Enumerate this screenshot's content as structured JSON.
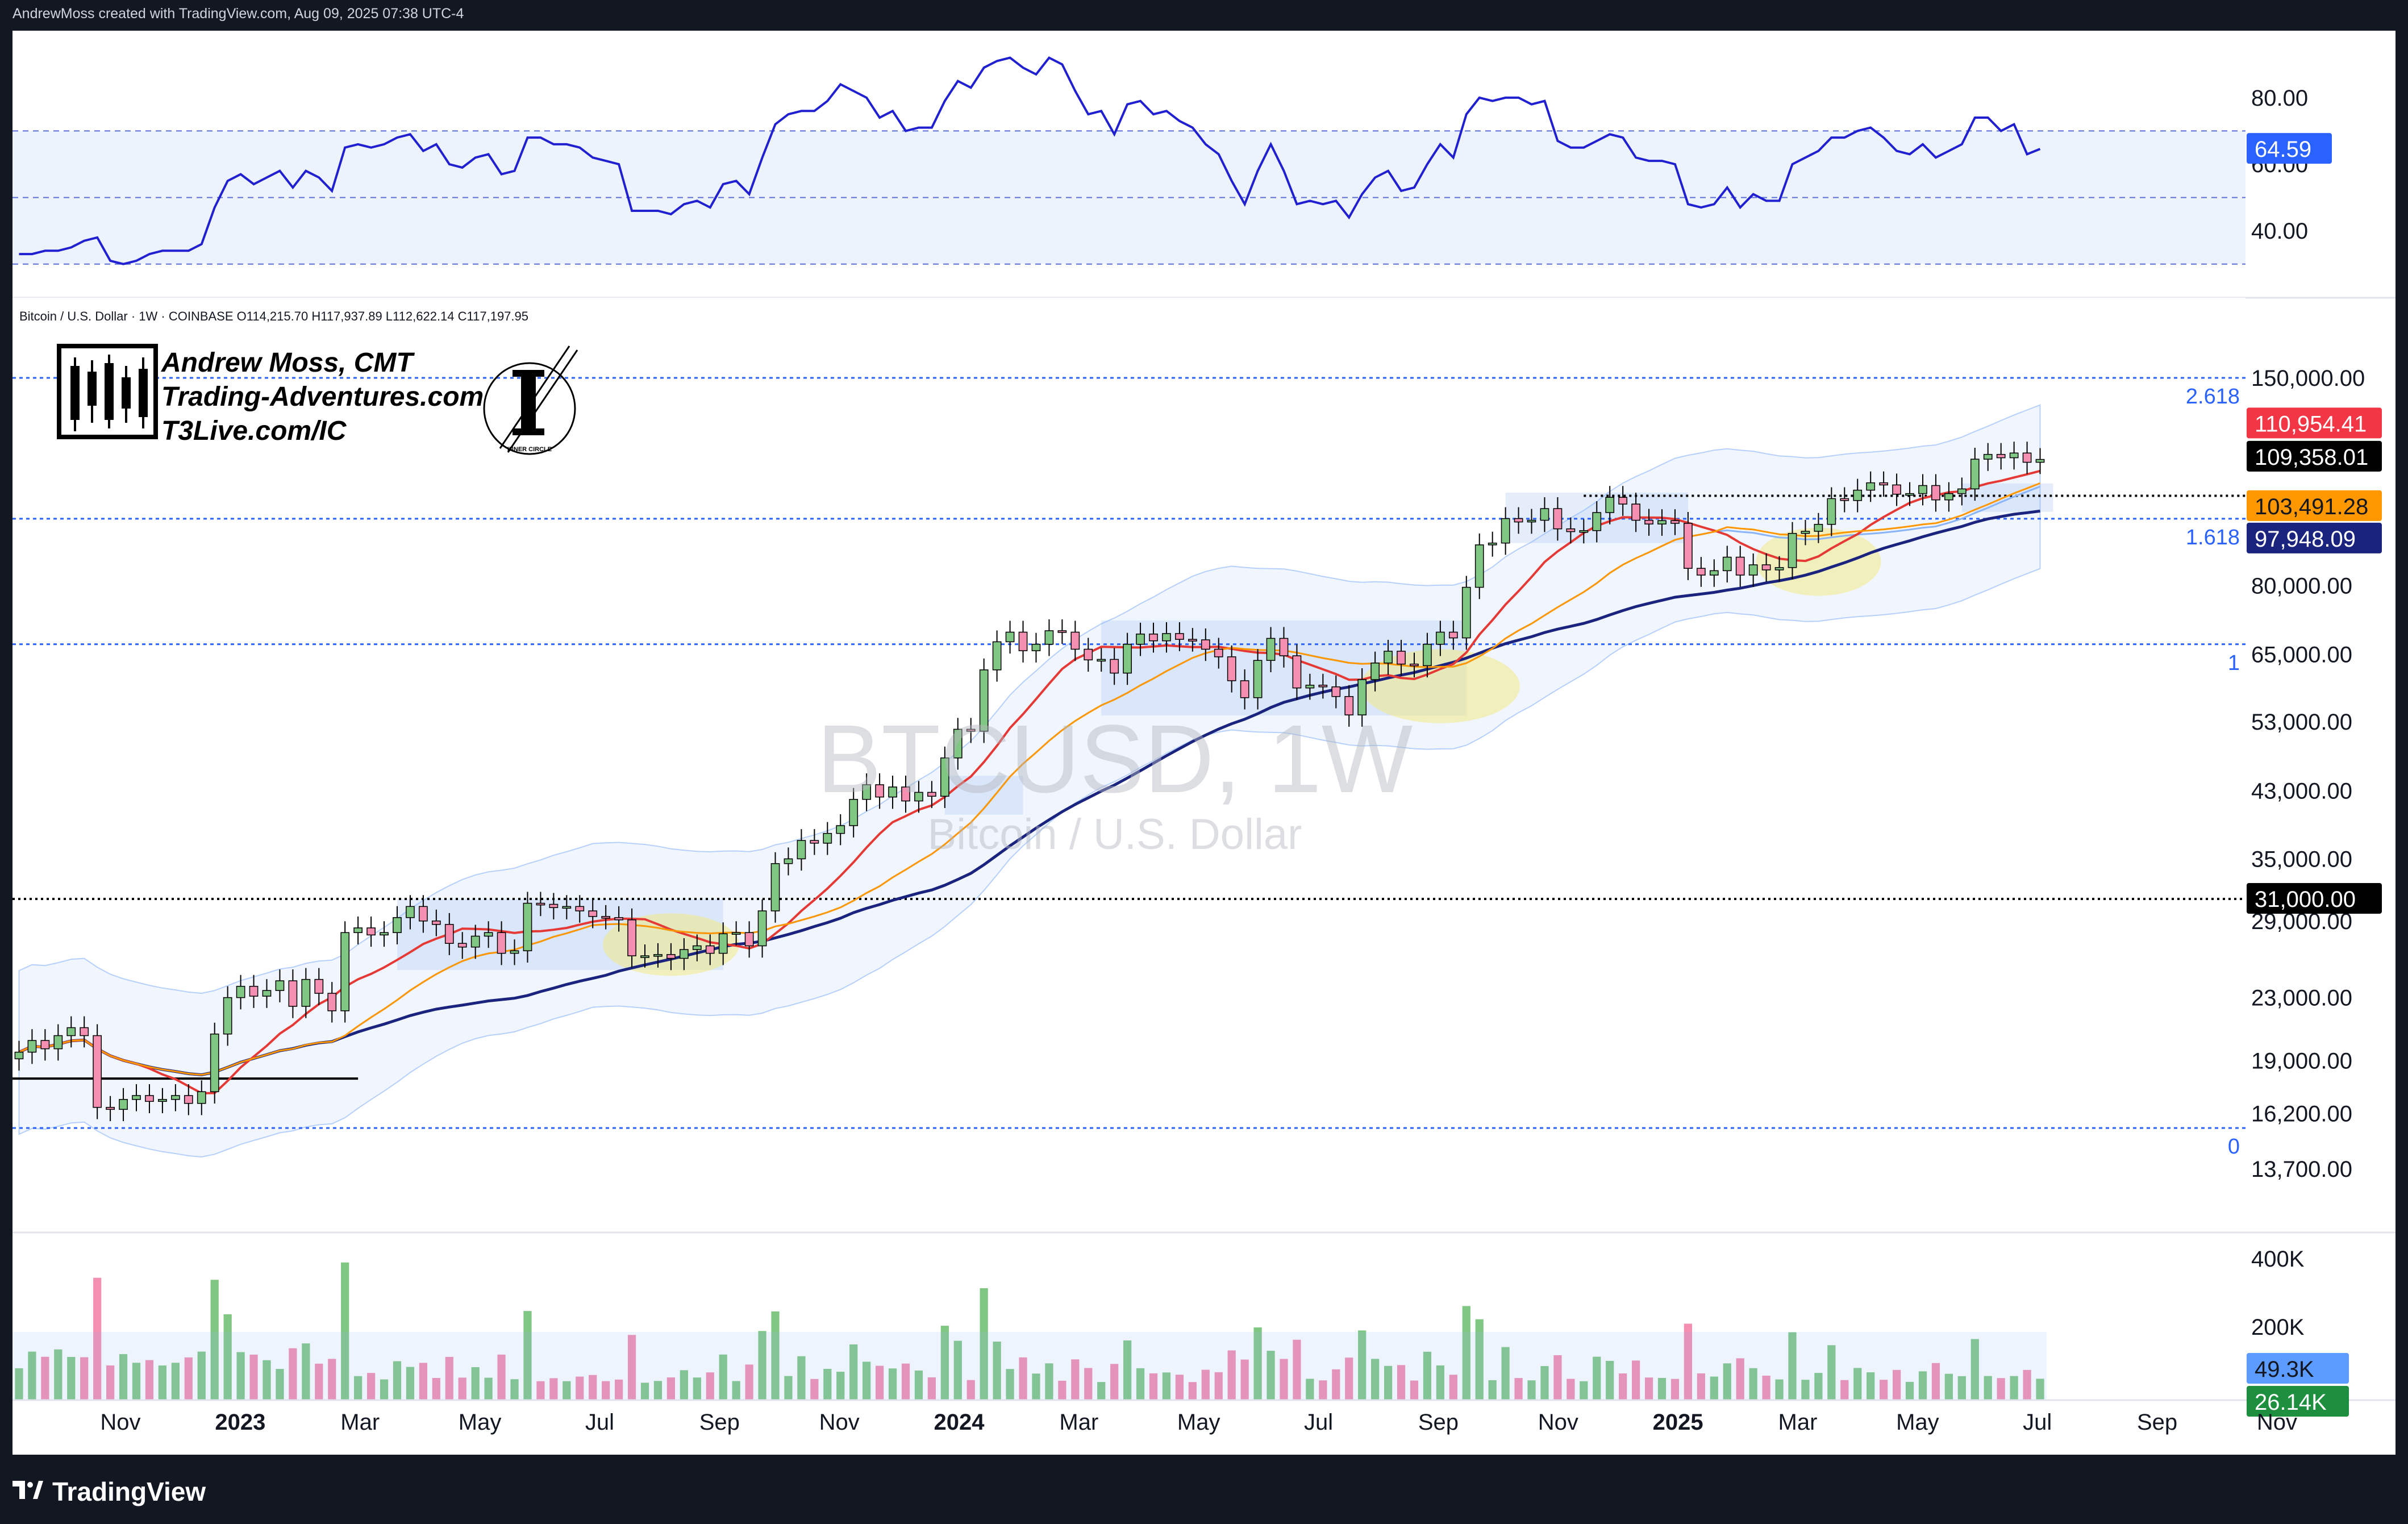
{
  "header": {
    "attribution": "AndrewMoss created with TradingView.com, Aug 09, 2025 07:38 UTC-4"
  },
  "footer": {
    "brand": "TradingView"
  },
  "symbol_legend": "Bitcoin / U.S. Dollar · 1W · COINBASE  O114,215.70  H117,937.89  L112,622.14  C117,197.95",
  "branding": {
    "name": "Andrew Moss, CMT",
    "site": "Trading-Adventures.com",
    "site2": "T3Live.com/IC",
    "seal_caption": "INNER CIRCLE"
  },
  "watermark": {
    "symbol": "BTCUSD, 1W",
    "description": "Bitcoin / U.S. Dollar"
  },
  "colors": {
    "up": "#81c784",
    "down": "#f48fb1",
    "sma_red": "#e53935",
    "sma_orange": "#ff9800",
    "sma_blue": "#1a237e",
    "bb": "#8ab4f8",
    "rsi": "#2020d0",
    "fib": "#2962ff",
    "zone": "#c5d8f5",
    "highlight": "#fff176"
  },
  "chart_data": {
    "type": "candlestick",
    "symbol": "BTCUSD",
    "interval": "1W",
    "exchange": "COINBASE",
    "ohlc_last": {
      "open": 114215.7,
      "high": 117937.89,
      "low": 112622.14,
      "close": 117197.95
    },
    "x_labels": [
      "Nov",
      "2023",
      "Mar",
      "May",
      "Jul",
      "Sep",
      "Nov",
      "2024",
      "Mar",
      "May",
      "Jul",
      "Sep",
      "Nov",
      "2025",
      "Mar",
      "May",
      "Jul",
      "Sep",
      "Nov"
    ],
    "x_bold": [
      "2023",
      "2024",
      "2025"
    ],
    "y_scale": "log",
    "y_ticks": [
      "150,000.00",
      "80,000.00",
      "65,000.00",
      "53,000.00",
      "43,000.00",
      "35,000.00",
      "29,000.00",
      "23,000.00",
      "19,000.00",
      "16,200.00",
      "13,700.00"
    ],
    "price_tags": [
      {
        "label": "110,954.41",
        "bg": "#f23645",
        "fg": "#ffffff",
        "value": 110954.41
      },
      {
        "label": "109,358.01",
        "bg": "#000000",
        "fg": "#ffffff",
        "value": 109358.01
      },
      {
        "label": "103,491.28",
        "bg": "#ff9800",
        "fg": "#131722",
        "value": 103491.28
      },
      {
        "label": "97,948.09",
        "bg": "#1a237e",
        "fg": "#ffffff",
        "value": 97948.09
      },
      {
        "label": "31,000.00",
        "bg": "#000000",
        "fg": "#ffffff",
        "value": 31000
      }
    ],
    "fib_levels": [
      {
        "label": "2.618",
        "value": 150000
      },
      {
        "label": "1.618",
        "value": 97948.09
      },
      {
        "label": "1",
        "value": 67000
      },
      {
        "label": "0",
        "value": 15500
      }
    ],
    "horizontal_lines": [
      {
        "value": 31000,
        "style": "dotted"
      },
      {
        "value": 105000,
        "style": "dotted"
      },
      {
        "value": 18000,
        "style": "solid"
      }
    ],
    "weekly_closes": [
      19500,
      20200,
      19700,
      20500,
      21000,
      20500,
      16500,
      16400,
      16900,
      17100,
      16800,
      16900,
      17100,
      16700,
      17300,
      20600,
      23000,
      23800,
      23100,
      23500,
      24200,
      22400,
      24300,
      23300,
      22100,
      28000,
      28400,
      27800,
      28000,
      29300,
      30300,
      29000,
      28700,
      27100,
      26800,
      27700,
      28000,
      26300,
      26500,
      30600,
      30500,
      30200,
      30300,
      29900,
      29400,
      29300,
      29100,
      26100,
      26100,
      26200,
      25900,
      26600,
      26900,
      26300,
      27900,
      28000,
      26900,
      29900,
      34500,
      35000,
      37000,
      36700,
      37800,
      38700,
      41900,
      43800,
      42200,
      43500,
      41700,
      42800,
      42300,
      47500,
      51800,
      51500,
      62000,
      67500,
      69500,
      65700,
      67000,
      69800,
      69500,
      66000,
      63900,
      64000,
      61400,
      67000,
      69100,
      67700,
      69200,
      68000,
      67900,
      66000,
      64500,
      60000,
      57000,
      63800,
      68200,
      64700,
      58700,
      59200,
      58900,
      57200,
      54100,
      60200,
      63300,
      65600,
      63100,
      62800,
      67000,
      69500,
      68300,
      79600,
      90500,
      91000,
      98000,
      97000,
      97500,
      101000,
      95000,
      94200,
      94500,
      99800,
      104500,
      102400,
      97500,
      96400,
      97400,
      96600,
      84300,
      82600,
      83700,
      87200,
      82600,
      85200,
      83900,
      84500,
      93700,
      94300,
      96300,
      104100,
      103500,
      106800,
      109200,
      108500,
      105500,
      105700,
      108300,
      103700,
      105700,
      107200,
      117300,
      119000,
      117800,
      119500,
      116200,
      117200
    ],
    "sma_short_label": "110,954.41",
    "sma_long_label": "97,948.09",
    "rsi": {
      "label": "64.59",
      "value": 64.59,
      "y_ticks": [
        "80.00",
        "60.00",
        "40.00"
      ],
      "bands": [
        70,
        50,
        30
      ],
      "values": [
        33,
        33,
        34,
        34,
        35,
        37,
        38,
        31,
        30,
        31,
        33,
        34,
        34,
        34,
        36,
        47,
        55,
        57,
        54,
        56,
        58,
        53,
        58,
        56,
        52,
        65,
        66,
        65,
        66,
        68,
        69,
        64,
        66,
        60,
        59,
        62,
        63,
        57,
        58,
        68,
        68,
        66,
        66,
        65,
        62,
        61,
        60,
        46,
        46,
        46,
        45,
        48,
        49,
        47,
        54,
        55,
        51,
        62,
        72,
        75,
        76,
        76,
        79,
        84,
        82,
        80,
        74,
        76,
        70,
        71,
        71,
        79,
        85,
        83,
        89,
        91,
        92,
        89,
        87,
        92,
        90,
        82,
        75,
        76,
        69,
        78,
        79,
        75,
        76,
        73,
        71,
        66,
        63,
        55,
        48,
        58,
        66,
        58,
        48,
        49,
        48,
        49,
        44,
        51,
        56,
        58,
        52,
        53,
        60,
        66,
        62,
        75,
        80,
        79,
        80,
        80,
        78,
        79,
        67,
        65,
        65,
        67,
        69,
        68,
        62,
        61,
        61,
        60,
        48,
        47,
        48,
        53,
        47,
        51,
        49,
        49,
        60,
        62,
        64,
        68,
        68,
        70,
        71,
        68,
        64,
        63,
        66,
        62,
        64,
        66,
        74,
        74,
        70,
        72,
        63,
        64.59
      ]
    },
    "volume": {
      "y_ticks": [
        "400K",
        "200K"
      ],
      "tags": [
        {
          "label": "49.3K",
          "bg": "#5c9bff",
          "fg": "#131722"
        },
        {
          "label": "26.14K",
          "bg": "#1e8f3e",
          "fg": "#ffffff"
        }
      ]
    }
  }
}
